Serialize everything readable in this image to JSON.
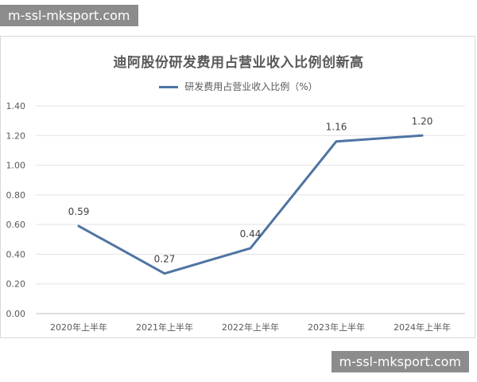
{
  "watermark_top": "m-ssl-mksport.com",
  "watermark_bottom": "m-ssl-mksport.com",
  "chart_data": {
    "type": "line",
    "title": "迪阿股份研发费用占营业收入比例创新高",
    "categories": [
      "2020年上半年",
      "2021年上半年",
      "2022年上半年",
      "2023年上半年",
      "2024年上半年"
    ],
    "series": [
      {
        "name": "研发费用占营业收入比例（%）",
        "values": [
          0.59,
          0.27,
          0.44,
          1.16,
          1.2
        ],
        "color": "#4f74a3"
      }
    ],
    "data_labels": [
      "0.59",
      "0.27",
      "0.44",
      "1.16",
      "1.20"
    ],
    "yticks": [
      "0.00",
      "0.20",
      "0.40",
      "0.60",
      "0.80",
      "1.00",
      "1.20",
      "1.40"
    ],
    "ylim": [
      0,
      1.4
    ],
    "grid": true,
    "legend": "top"
  }
}
